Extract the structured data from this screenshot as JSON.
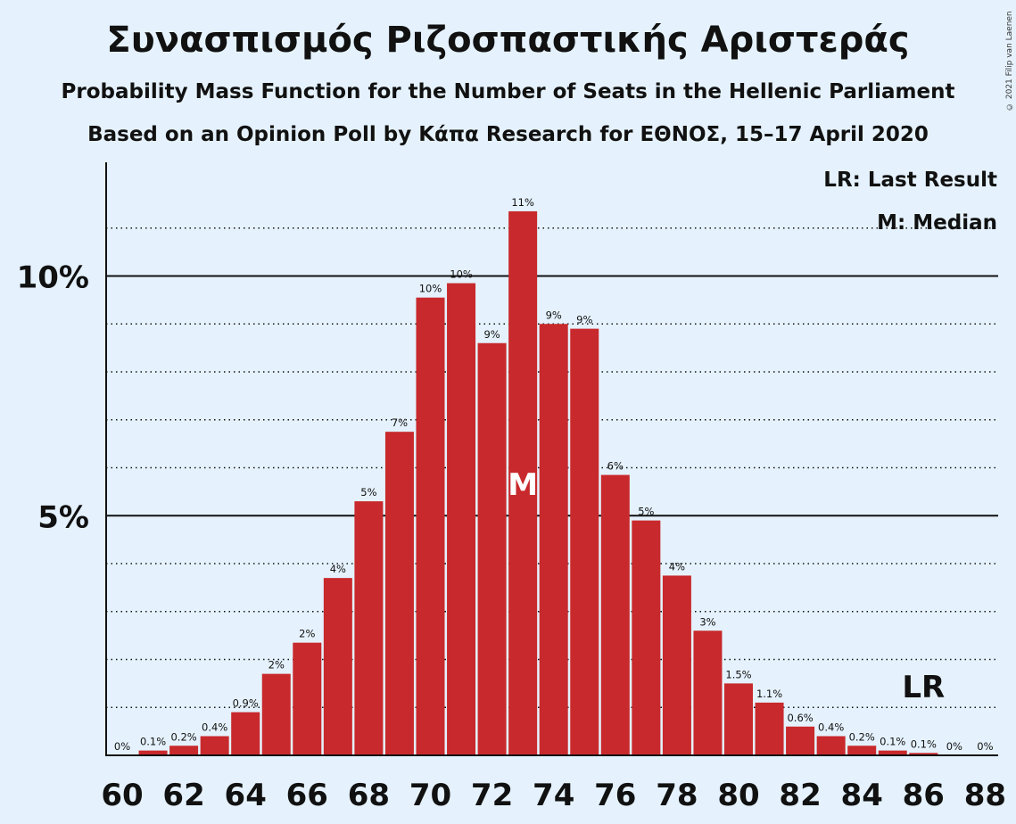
{
  "title": "Συνασπισμός Ριζοσπαστικής Αριστεράς",
  "subtitle": "Probability Mass Function for the Number of Seats in the Hellenic Parliament",
  "subtitle2": "Based on an Opinion Poll by Κάπα Research for ΕΘΝΟΣ, 15–17 April 2020",
  "copyright": "© 2021 Filip van Laenen",
  "legend": {
    "last_result": "LR: Last Result",
    "median": "M: Median"
  },
  "colors": {
    "background": "#e5f2fd",
    "bar": "#c8292c",
    "text": "#111111"
  },
  "chart_data": {
    "type": "bar",
    "categories": [
      60,
      61,
      62,
      63,
      64,
      65,
      66,
      67,
      68,
      69,
      70,
      71,
      72,
      73,
      74,
      75,
      76,
      77,
      78,
      79,
      80,
      81,
      82,
      83,
      84,
      85,
      86,
      87,
      88
    ],
    "values": [
      0,
      0.1,
      0.2,
      0.4,
      0.9,
      1.7,
      2.35,
      3.7,
      5.3,
      6.75,
      9.55,
      9.85,
      8.6,
      11.35,
      9.0,
      8.9,
      5.85,
      4.9,
      3.75,
      2.6,
      1.5,
      1.1,
      0.6,
      0.4,
      0.2,
      0.1,
      0.05,
      0,
      0
    ],
    "data_labels": [
      "0%",
      "0.1%",
      "0.2%",
      "0.4%",
      "0.9%",
      "2%",
      "2%",
      "4%",
      "5%",
      "7%",
      "10%",
      "10%",
      "9%",
      "11%",
      "9%",
      "9%",
      "6%",
      "5%",
      "4%",
      "3%",
      "1.5%",
      "1.1%",
      "0.6%",
      "0.4%",
      "0.2%",
      "0.1%",
      "0.1%",
      "0%",
      "0%"
    ],
    "x_tick_labels": [
      "60",
      "62",
      "64",
      "66",
      "68",
      "70",
      "72",
      "74",
      "76",
      "78",
      "80",
      "82",
      "84",
      "86",
      "88"
    ],
    "y_tick_labels": [
      {
        "value": 5,
        "label": "5%"
      },
      {
        "value": 10,
        "label": "10%"
      }
    ],
    "ylim": [
      0,
      12.4
    ],
    "minor_gridlines": [
      1,
      2,
      3,
      4,
      6,
      7,
      8,
      9,
      11
    ],
    "median": {
      "seat": 73,
      "label": "M"
    },
    "last_result": {
      "seat": 86,
      "label": "LR"
    },
    "legend_position": "top-right"
  }
}
